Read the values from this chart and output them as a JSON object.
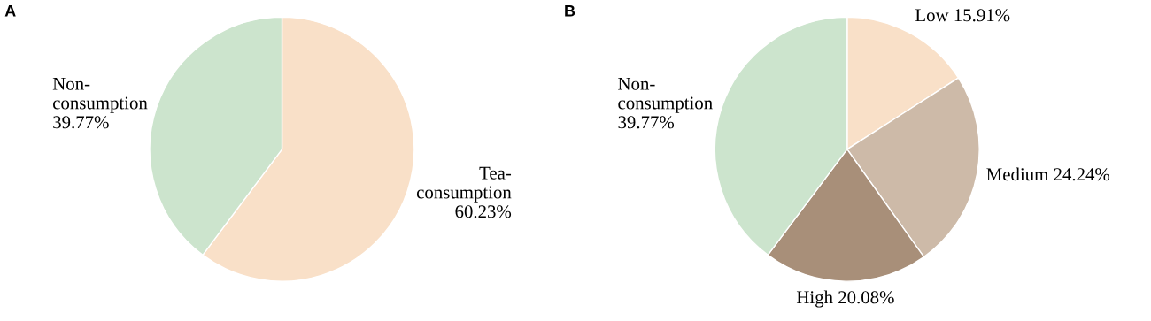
{
  "chart_data": [
    {
      "type": "pie",
      "title": "A",
      "categories": [
        "Tea-\nconsumption",
        "Non-\nconsumption"
      ],
      "values": [
        60.23,
        39.77
      ],
      "value_labels": [
        "60.23%",
        "39.77%"
      ],
      "colors": [
        "#f9e0c8",
        "#cce4cd"
      ]
    },
    {
      "type": "pie",
      "title": "B",
      "categories": [
        "Low",
        "Medium",
        "High",
        "Non-\nconsumption"
      ],
      "values": [
        15.91,
        24.24,
        20.08,
        39.77
      ],
      "value_labels": [
        "15.91%",
        "24.24%",
        "20.08%",
        "39.77%"
      ],
      "colors": [
        "#f9e0c8",
        "#cdbaa8",
        "#a88f79",
        "#cce4cd"
      ]
    }
  ]
}
